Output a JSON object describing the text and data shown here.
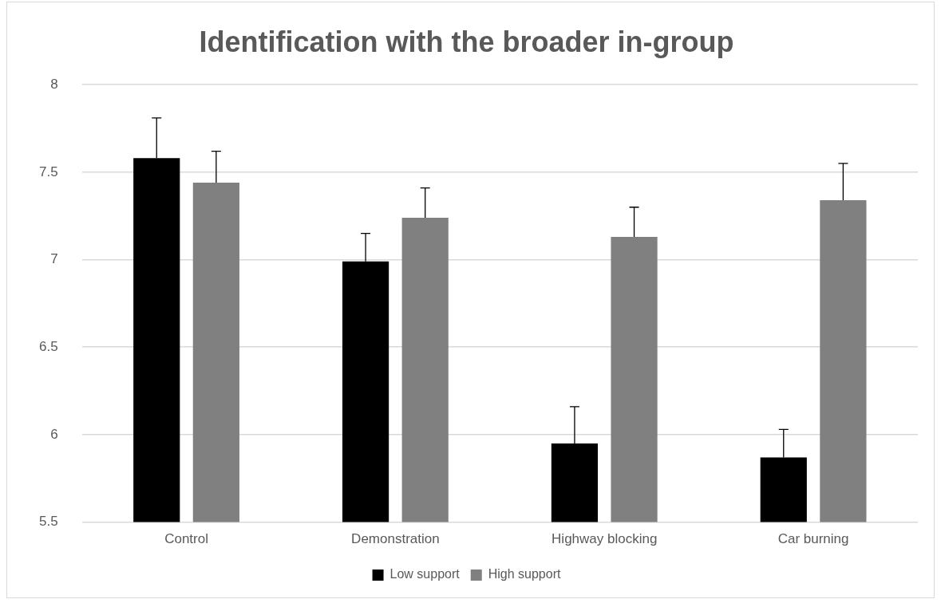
{
  "chart_data": {
    "type": "bar",
    "title": "Identification with the broader in-group",
    "categories": [
      "Control",
      "Demonstration",
      "Highway blocking",
      "Car burning"
    ],
    "series": [
      {
        "name": "Low support",
        "color": "#000000",
        "values": [
          7.58,
          6.99,
          5.95,
          5.87
        ],
        "errors": [
          [
            7.58,
            7.81
          ],
          [
            6.99,
            7.15
          ],
          [
            5.95,
            6.16
          ],
          [
            5.87,
            6.03
          ]
        ]
      },
      {
        "name": "High support",
        "color": "#808080",
        "values": [
          7.44,
          7.24,
          7.13,
          7.34
        ],
        "errors": [
          [
            7.44,
            7.62
          ],
          [
            7.24,
            7.41
          ],
          [
            7.13,
            7.3
          ],
          [
            7.34,
            7.55
          ]
        ]
      }
    ],
    "ylim": [
      5.5,
      8
    ],
    "yticks": [
      5.5,
      6,
      6.5,
      7,
      7.5,
      8
    ],
    "grid": "y",
    "legend": "bottom"
  }
}
